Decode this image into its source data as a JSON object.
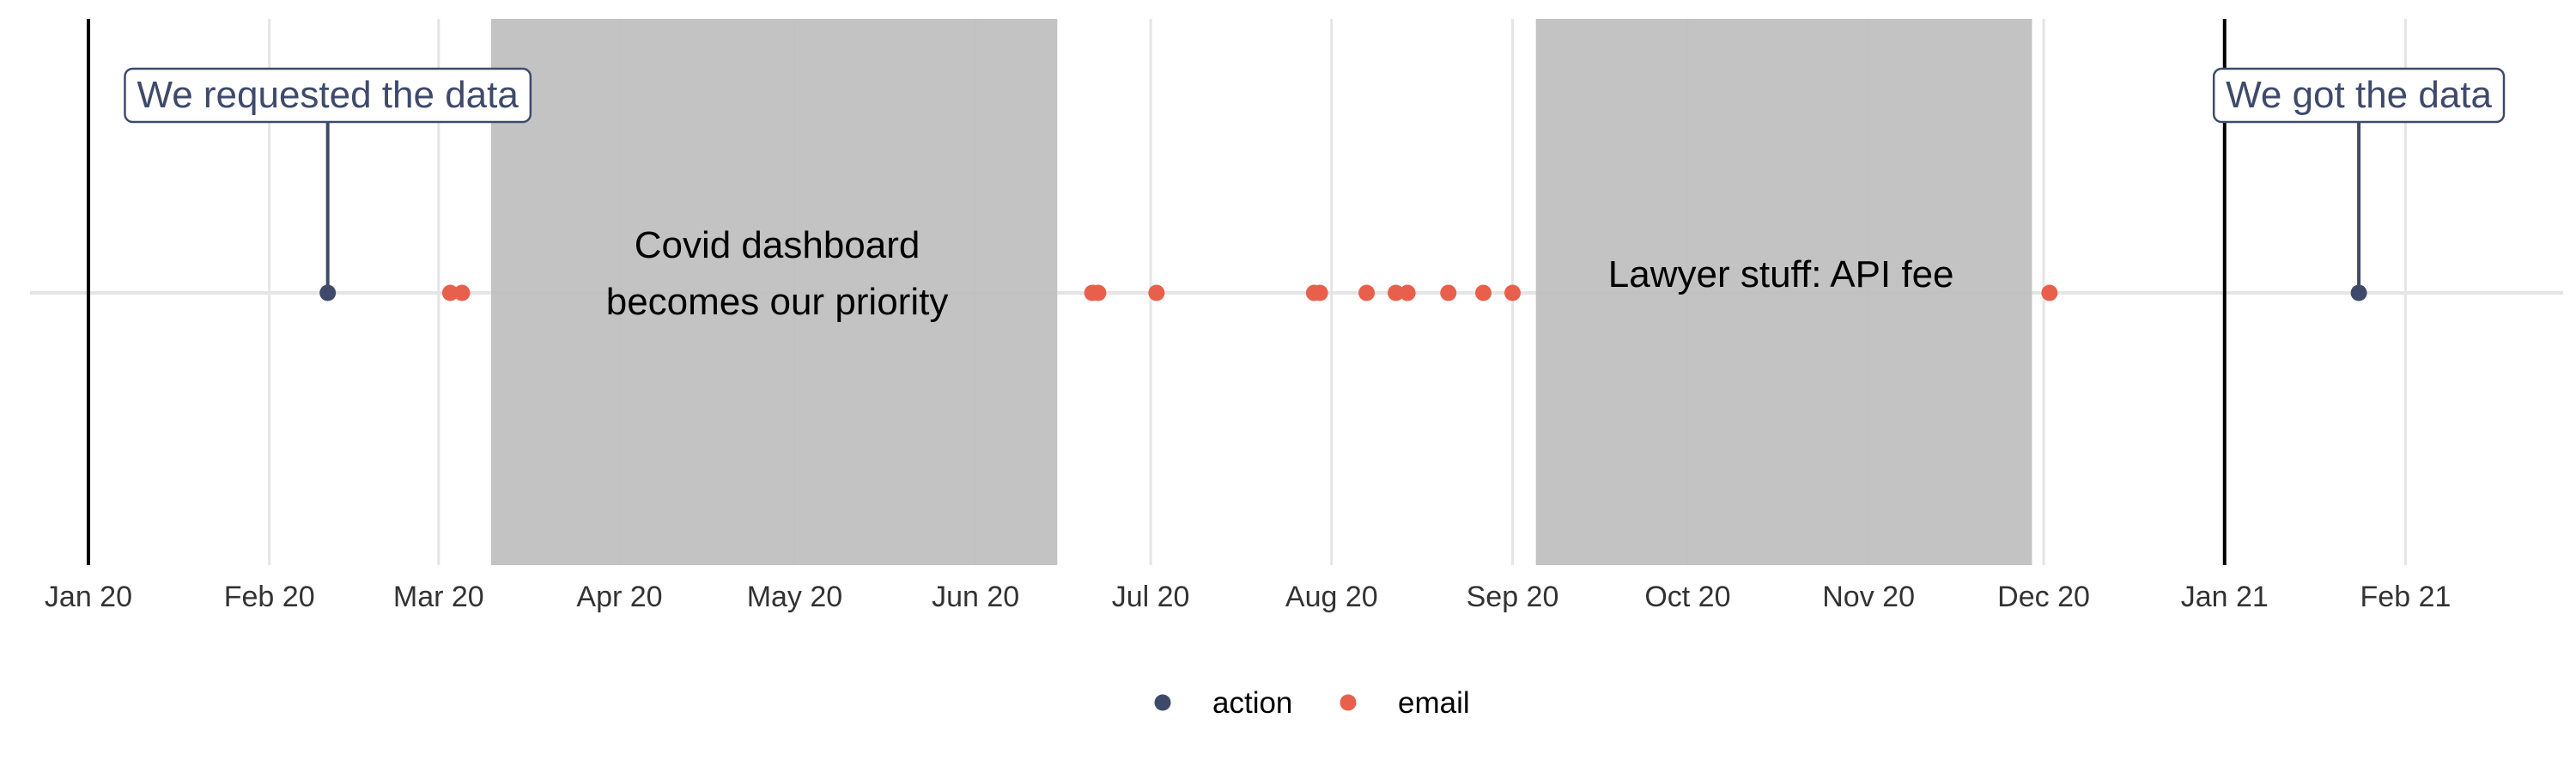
{
  "chart_data": {
    "type": "scatter",
    "title": "",
    "xlabel": "",
    "ylabel": "",
    "x_axis": {
      "scale": "date",
      "range": [
        "2019-12-22",
        "2021-02-28"
      ],
      "ticks": [
        {
          "date": "2020-01-01",
          "label": "Jan 20"
        },
        {
          "date": "2020-02-01",
          "label": "Feb 20"
        },
        {
          "date": "2020-03-01",
          "label": "Mar 20"
        },
        {
          "date": "2020-04-01",
          "label": "Apr 20"
        },
        {
          "date": "2020-05-01",
          "label": "May 20"
        },
        {
          "date": "2020-06-01",
          "label": "Jun 20"
        },
        {
          "date": "2020-07-01",
          "label": "Jul 20"
        },
        {
          "date": "2020-08-01",
          "label": "Aug 20"
        },
        {
          "date": "2020-09-01",
          "label": "Sep 20"
        },
        {
          "date": "2020-10-01",
          "label": "Oct 20"
        },
        {
          "date": "2020-11-01",
          "label": "Nov 20"
        },
        {
          "date": "2020-12-01",
          "label": "Dec 20"
        },
        {
          "date": "2021-01-01",
          "label": "Jan 21"
        },
        {
          "date": "2021-02-01",
          "label": "Feb 21"
        }
      ]
    },
    "grid": true,
    "year_lines": [
      "2020-01-01",
      "2021-01-01"
    ],
    "shaded_periods": [
      {
        "start": "2020-03-10",
        "end": "2020-06-15",
        "label_lines": [
          "Covid dashboard",
          "becomes our priority"
        ],
        "label_date": "2020-04-28",
        "fill": "#bebebe"
      },
      {
        "start": "2020-09-05",
        "end": "2020-11-29",
        "label_lines": [
          "Lawyer stuff: API fee"
        ],
        "label_date": "2020-10-17",
        "fill": "#bebebe"
      }
    ],
    "series": [
      {
        "name": "action",
        "color": "#3f4a6b",
        "dates": [
          "2020-02-11",
          "2021-01-24"
        ]
      },
      {
        "name": "email",
        "color": "#e8604c",
        "dates": [
          "2020-03-03",
          "2020-03-05",
          "2020-06-21",
          "2020-06-22",
          "2020-07-02",
          "2020-07-29",
          "2020-07-30",
          "2020-08-07",
          "2020-08-12",
          "2020-08-14",
          "2020-08-21",
          "2020-08-27",
          "2020-09-01",
          "2020-12-02"
        ]
      }
    ],
    "annotations": [
      {
        "text": "We requested the data",
        "date": "2020-02-11",
        "color": "#3f4a6b"
      },
      {
        "text": "We got the data",
        "date": "2021-01-24",
        "color": "#3f4a6b"
      }
    ],
    "legend": {
      "position": "bottom",
      "entries": [
        {
          "name": "action",
          "color": "#3f4a6b"
        },
        {
          "name": "email",
          "color": "#e8604c"
        }
      ]
    }
  }
}
